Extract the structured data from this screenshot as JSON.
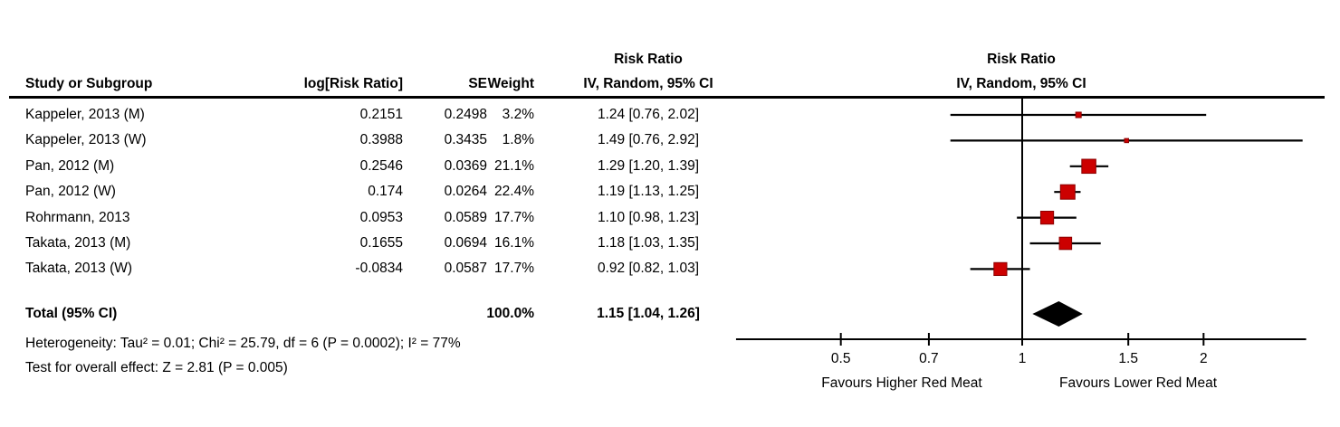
{
  "table": {
    "headers": {
      "study": "Study or Subgroup",
      "log_rr": "log[Risk Ratio]",
      "se": "SE",
      "weight": "Weight",
      "effect_line1": "Risk Ratio",
      "effect_line2": "IV, Random, 95% CI"
    }
  },
  "plot": {
    "header_line1": "Risk Ratio",
    "header_line2": "IV, Random, 95% CI",
    "tick_labels": [
      "0.5",
      "0.7",
      "1",
      "1.5",
      "2"
    ],
    "tick_values": [
      0.5,
      0.7,
      1,
      1.5,
      2
    ],
    "axis_min": 0.335,
    "axis_max": 2.96,
    "left_label": "Favours Higher Red Meat",
    "right_label": "Favours Lower Red Meat",
    "square_color": "#CC0000",
    "square_border_color": "#8B0000",
    "diamond_color": "#000000",
    "line_color": "#000000"
  },
  "chart_data": {
    "type": "forest",
    "scale": "log",
    "effect_measure": "Risk Ratio",
    "model": "IV, Random, 95% CI",
    "studies": [
      {
        "name": "Kappeler, 2013 (M)",
        "log_rr": "0.2151",
        "se": "0.2498",
        "weight": "3.2%",
        "weight_pct": 3.2,
        "rr": 1.24,
        "ci_low": 0.76,
        "ci_high": 2.02,
        "ci_text": "1.24 [0.76, 2.02]"
      },
      {
        "name": "Kappeler, 2013 (W)",
        "log_rr": "0.3988",
        "se": "0.3435",
        "weight": "1.8%",
        "weight_pct": 1.8,
        "rr": 1.49,
        "ci_low": 0.76,
        "ci_high": 2.92,
        "ci_text": "1.49 [0.76, 2.92]"
      },
      {
        "name": "Pan, 2012 (M)",
        "log_rr": "0.2546",
        "se": "0.0369",
        "weight": "21.1%",
        "weight_pct": 21.1,
        "rr": 1.29,
        "ci_low": 1.2,
        "ci_high": 1.39,
        "ci_text": "1.29 [1.20, 1.39]"
      },
      {
        "name": "Pan, 2012 (W)",
        "log_rr": "0.174",
        "se": "0.0264",
        "weight": "22.4%",
        "weight_pct": 22.4,
        "rr": 1.19,
        "ci_low": 1.13,
        "ci_high": 1.25,
        "ci_text": "1.19 [1.13, 1.25]"
      },
      {
        "name": "Rohrmann, 2013",
        "log_rr": "0.0953",
        "se": "0.0589",
        "weight": "17.7%",
        "weight_pct": 17.7,
        "rr": 1.1,
        "ci_low": 0.98,
        "ci_high": 1.23,
        "ci_text": "1.10 [0.98, 1.23]"
      },
      {
        "name": "Takata, 2013 (M)",
        "log_rr": "0.1655",
        "se": "0.0694",
        "weight": "16.1%",
        "weight_pct": 16.1,
        "rr": 1.18,
        "ci_low": 1.03,
        "ci_high": 1.35,
        "ci_text": "1.18 [1.03, 1.35]"
      },
      {
        "name": "Takata, 2013 (W)",
        "log_rr": "-0.0834",
        "se": "0.0587",
        "weight": "17.7%",
        "weight_pct": 17.7,
        "rr": 0.92,
        "ci_low": 0.82,
        "ci_high": 1.03,
        "ci_text": "0.92 [0.82, 1.03]"
      }
    ],
    "total": {
      "label": "Total (95% CI)",
      "weight": "100.0%",
      "rr": 1.15,
      "ci_low": 1.04,
      "ci_high": 1.26,
      "ci_text": "1.15 [1.04, 1.26]"
    },
    "heterogeneity": "Heterogeneity: Tau² = 0.01; Chi² = 25.79, df = 6 (P = 0.0002); I² = 77%",
    "overall_effect": "Test for overall effect: Z = 2.81 (P = 0.005)"
  }
}
